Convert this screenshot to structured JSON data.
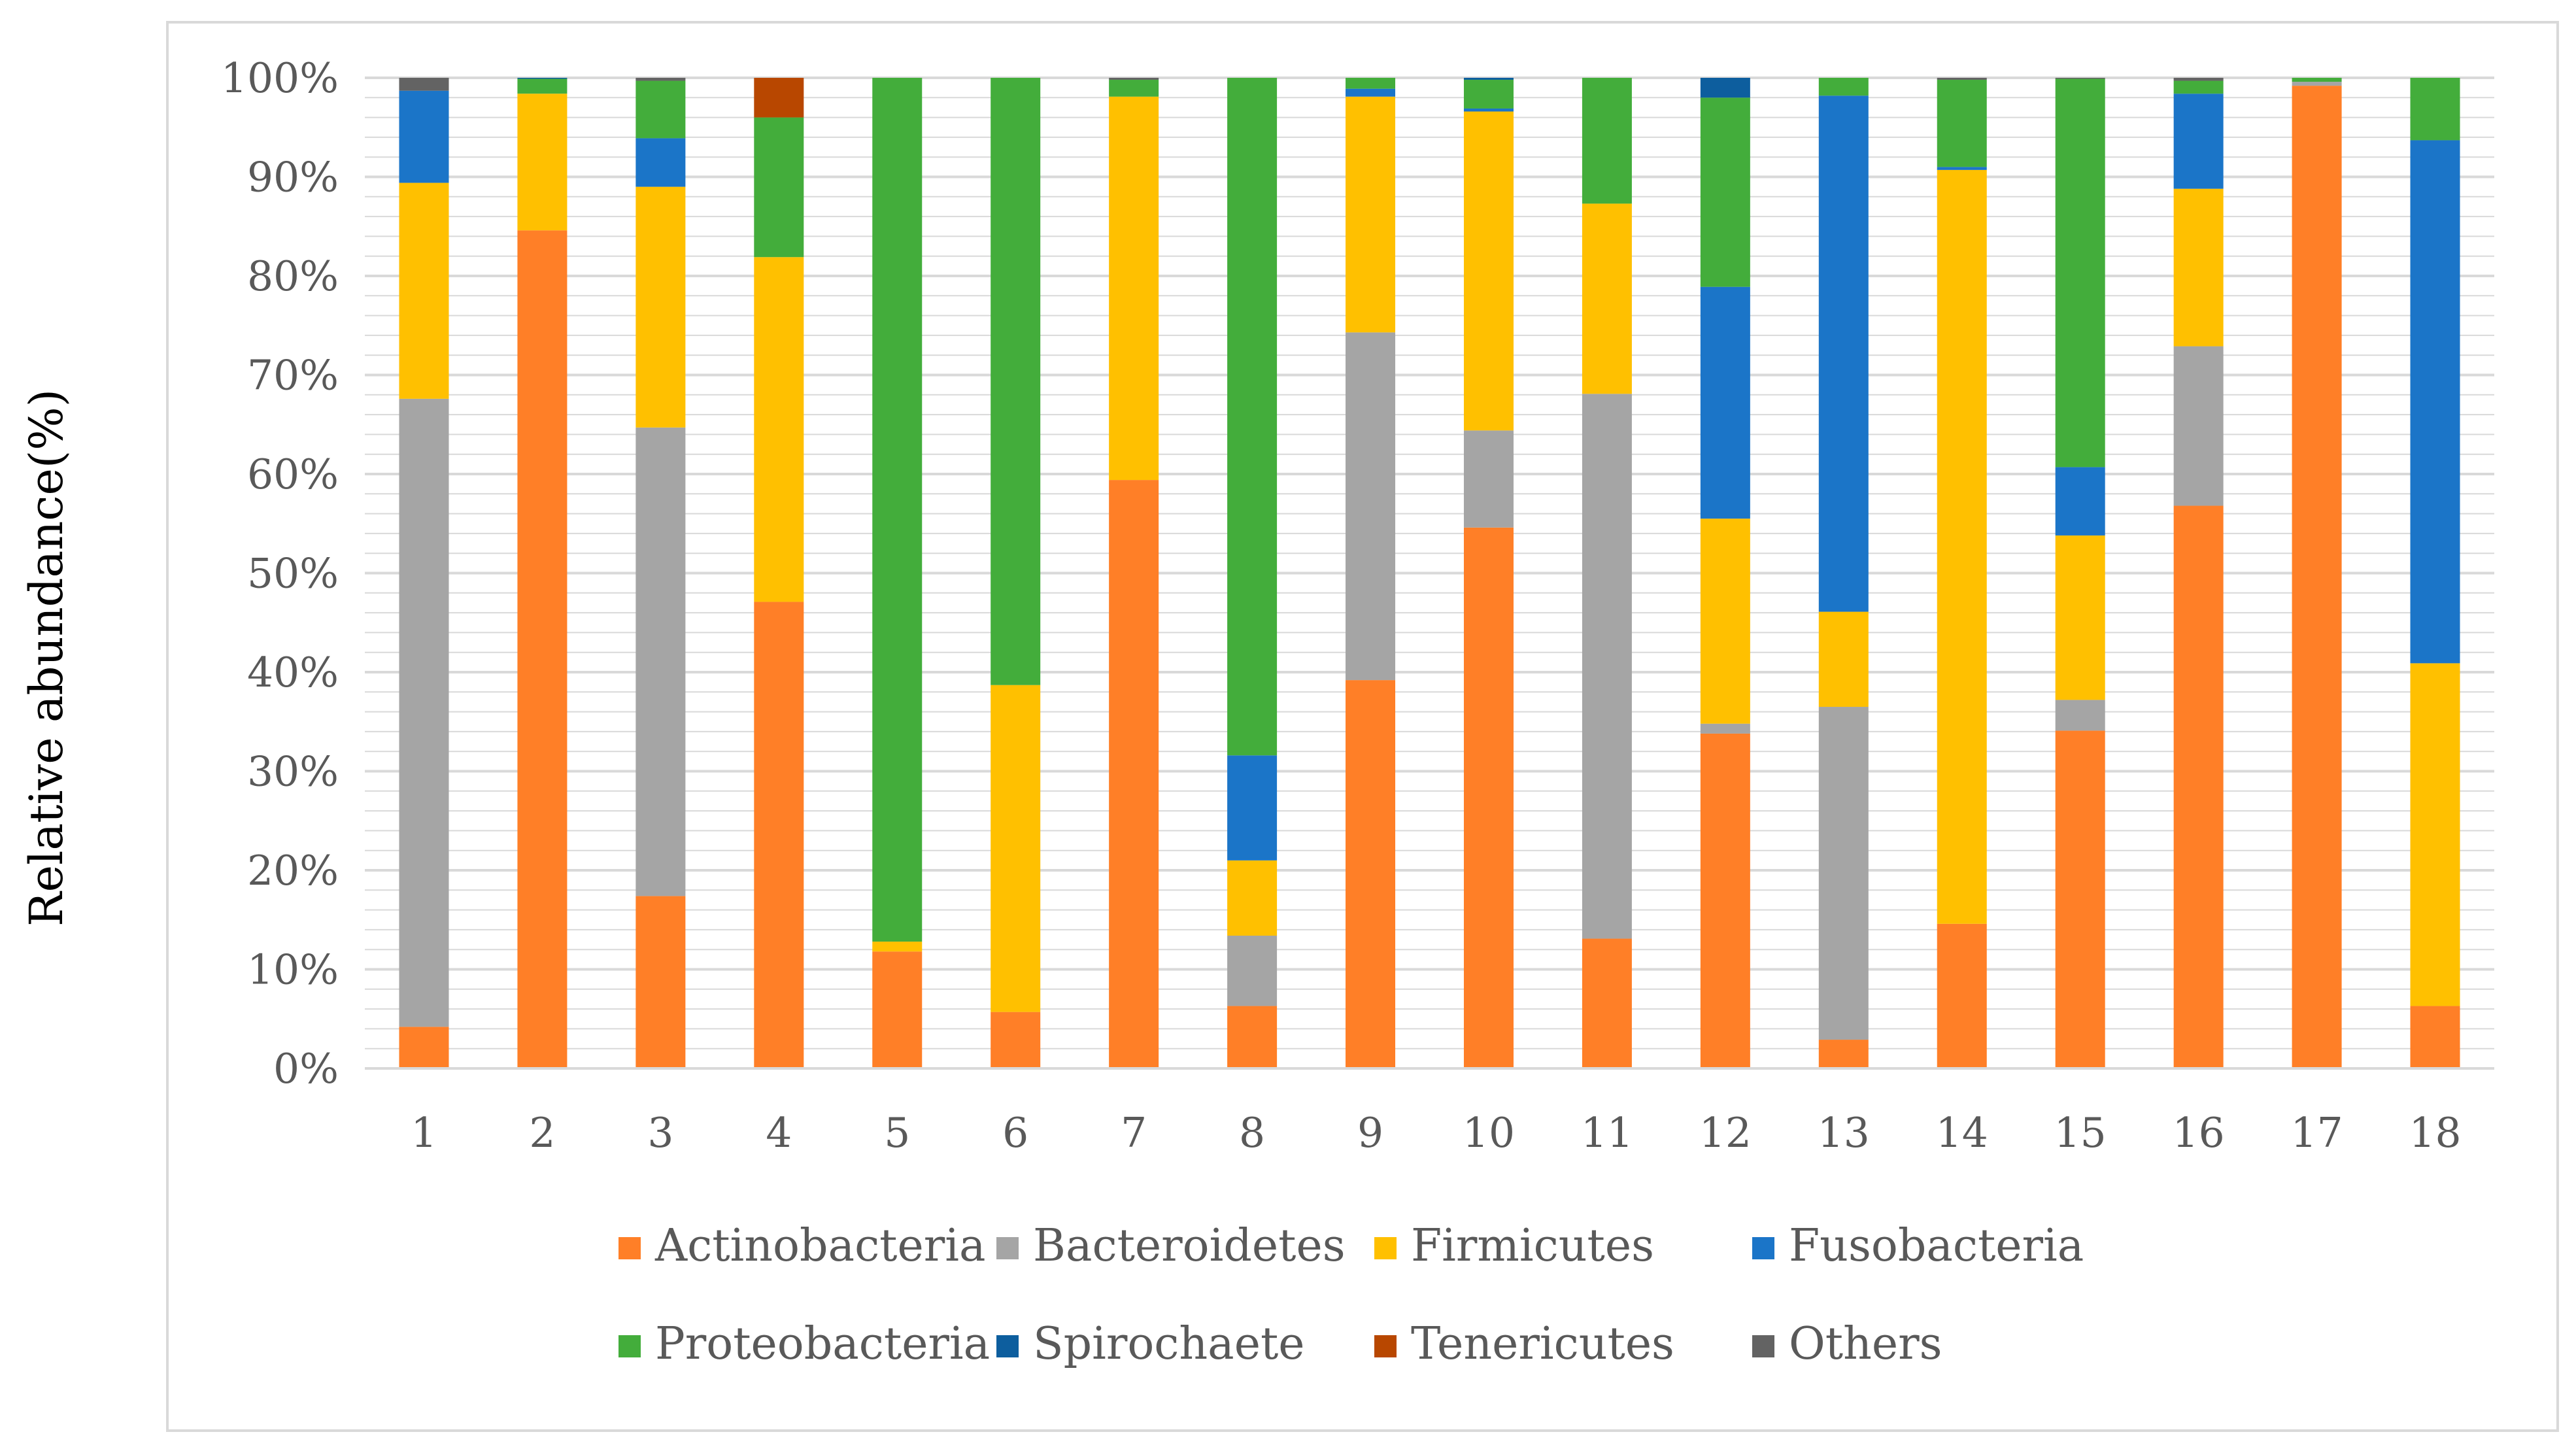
{
  "chart_data": {
    "type": "stacked-bar-100",
    "title": "",
    "xlabel": "",
    "ylabel": "Relative abundance(%)",
    "ylim": [
      0,
      100
    ],
    "y_ticks": [
      "0%",
      "10%",
      "20%",
      "30%",
      "40%",
      "50%",
      "60%",
      "70%",
      "80%",
      "90%",
      "100%"
    ],
    "categories": [
      "1",
      "2",
      "3",
      "4",
      "5",
      "6",
      "7",
      "8",
      "9",
      "10",
      "11",
      "12",
      "13",
      "14",
      "15",
      "16",
      "17",
      "18"
    ],
    "grid": true,
    "legend_position": "bottom",
    "series": [
      {
        "name": "Actinobacteria",
        "color": "#FF7F27",
        "values": [
          4.2,
          84.6,
          17.4,
          47.1,
          11.8,
          5.7,
          59.4,
          6.3,
          39.2,
          54.6,
          13.1,
          33.8,
          2.9,
          14.6,
          34.1,
          56.8,
          99.2,
          6.3
        ]
      },
      {
        "name": "Bacteroidetes",
        "color": "#A5A5A5",
        "values": [
          63.4,
          0.0,
          47.3,
          0.0,
          0.0,
          0.0,
          0.0,
          7.1,
          35.1,
          9.8,
          55.0,
          1.0,
          33.6,
          0.0,
          3.1,
          16.1,
          0.4,
          0.0
        ]
      },
      {
        "name": "Firmicutes",
        "color": "#FFC000",
        "values": [
          21.8,
          13.8,
          24.3,
          34.8,
          1.0,
          33.0,
          38.7,
          7.6,
          23.8,
          32.2,
          19.2,
          20.7,
          9.6,
          76.1,
          16.6,
          15.9,
          0.0,
          34.6
        ]
      },
      {
        "name": "Fusobacteria",
        "color": "#1B75C8",
        "values": [
          9.3,
          0.0,
          4.9,
          0.0,
          0.0,
          0.0,
          0.0,
          10.6,
          0.8,
          0.3,
          0.0,
          23.4,
          52.1,
          0.3,
          6.9,
          9.6,
          0.0,
          52.8
        ]
      },
      {
        "name": "Proteobacteria",
        "color": "#43AD3B",
        "values": [
          0.0,
          1.5,
          5.8,
          14.1,
          87.2,
          61.3,
          1.7,
          68.4,
          1.1,
          2.9,
          12.7,
          19.1,
          1.8,
          8.8,
          39.2,
          1.3,
          0.4,
          6.3
        ]
      },
      {
        "name": "Spirochaete",
        "color": "#0D5E9E",
        "values": [
          0.0,
          0.1,
          0.0,
          0.0,
          0.0,
          0.0,
          0.0,
          0.0,
          0.0,
          0.2,
          0.0,
          2.0,
          0.0,
          0.0,
          0.0,
          0.0,
          0.0,
          0.0
        ]
      },
      {
        "name": "Tenericutes",
        "color": "#B84700",
        "values": [
          0.0,
          0.0,
          0.0,
          4.0,
          0.0,
          0.0,
          0.0,
          0.0,
          0.0,
          0.0,
          0.0,
          0.0,
          0.0,
          0.0,
          0.0,
          0.0,
          0.0,
          0.0
        ]
      },
      {
        "name": "Others",
        "color": "#636363",
        "values": [
          1.3,
          0.0,
          0.3,
          0.0,
          0.0,
          0.0,
          0.2,
          0.0,
          0.0,
          0.0,
          0.0,
          0.0,
          0.0,
          0.2,
          0.1,
          0.3,
          0.0,
          0.0
        ]
      }
    ]
  },
  "colors": {
    "axis": "#d9d9d9",
    "gridline": "#d9d9d9",
    "tick_text": "#595959"
  }
}
